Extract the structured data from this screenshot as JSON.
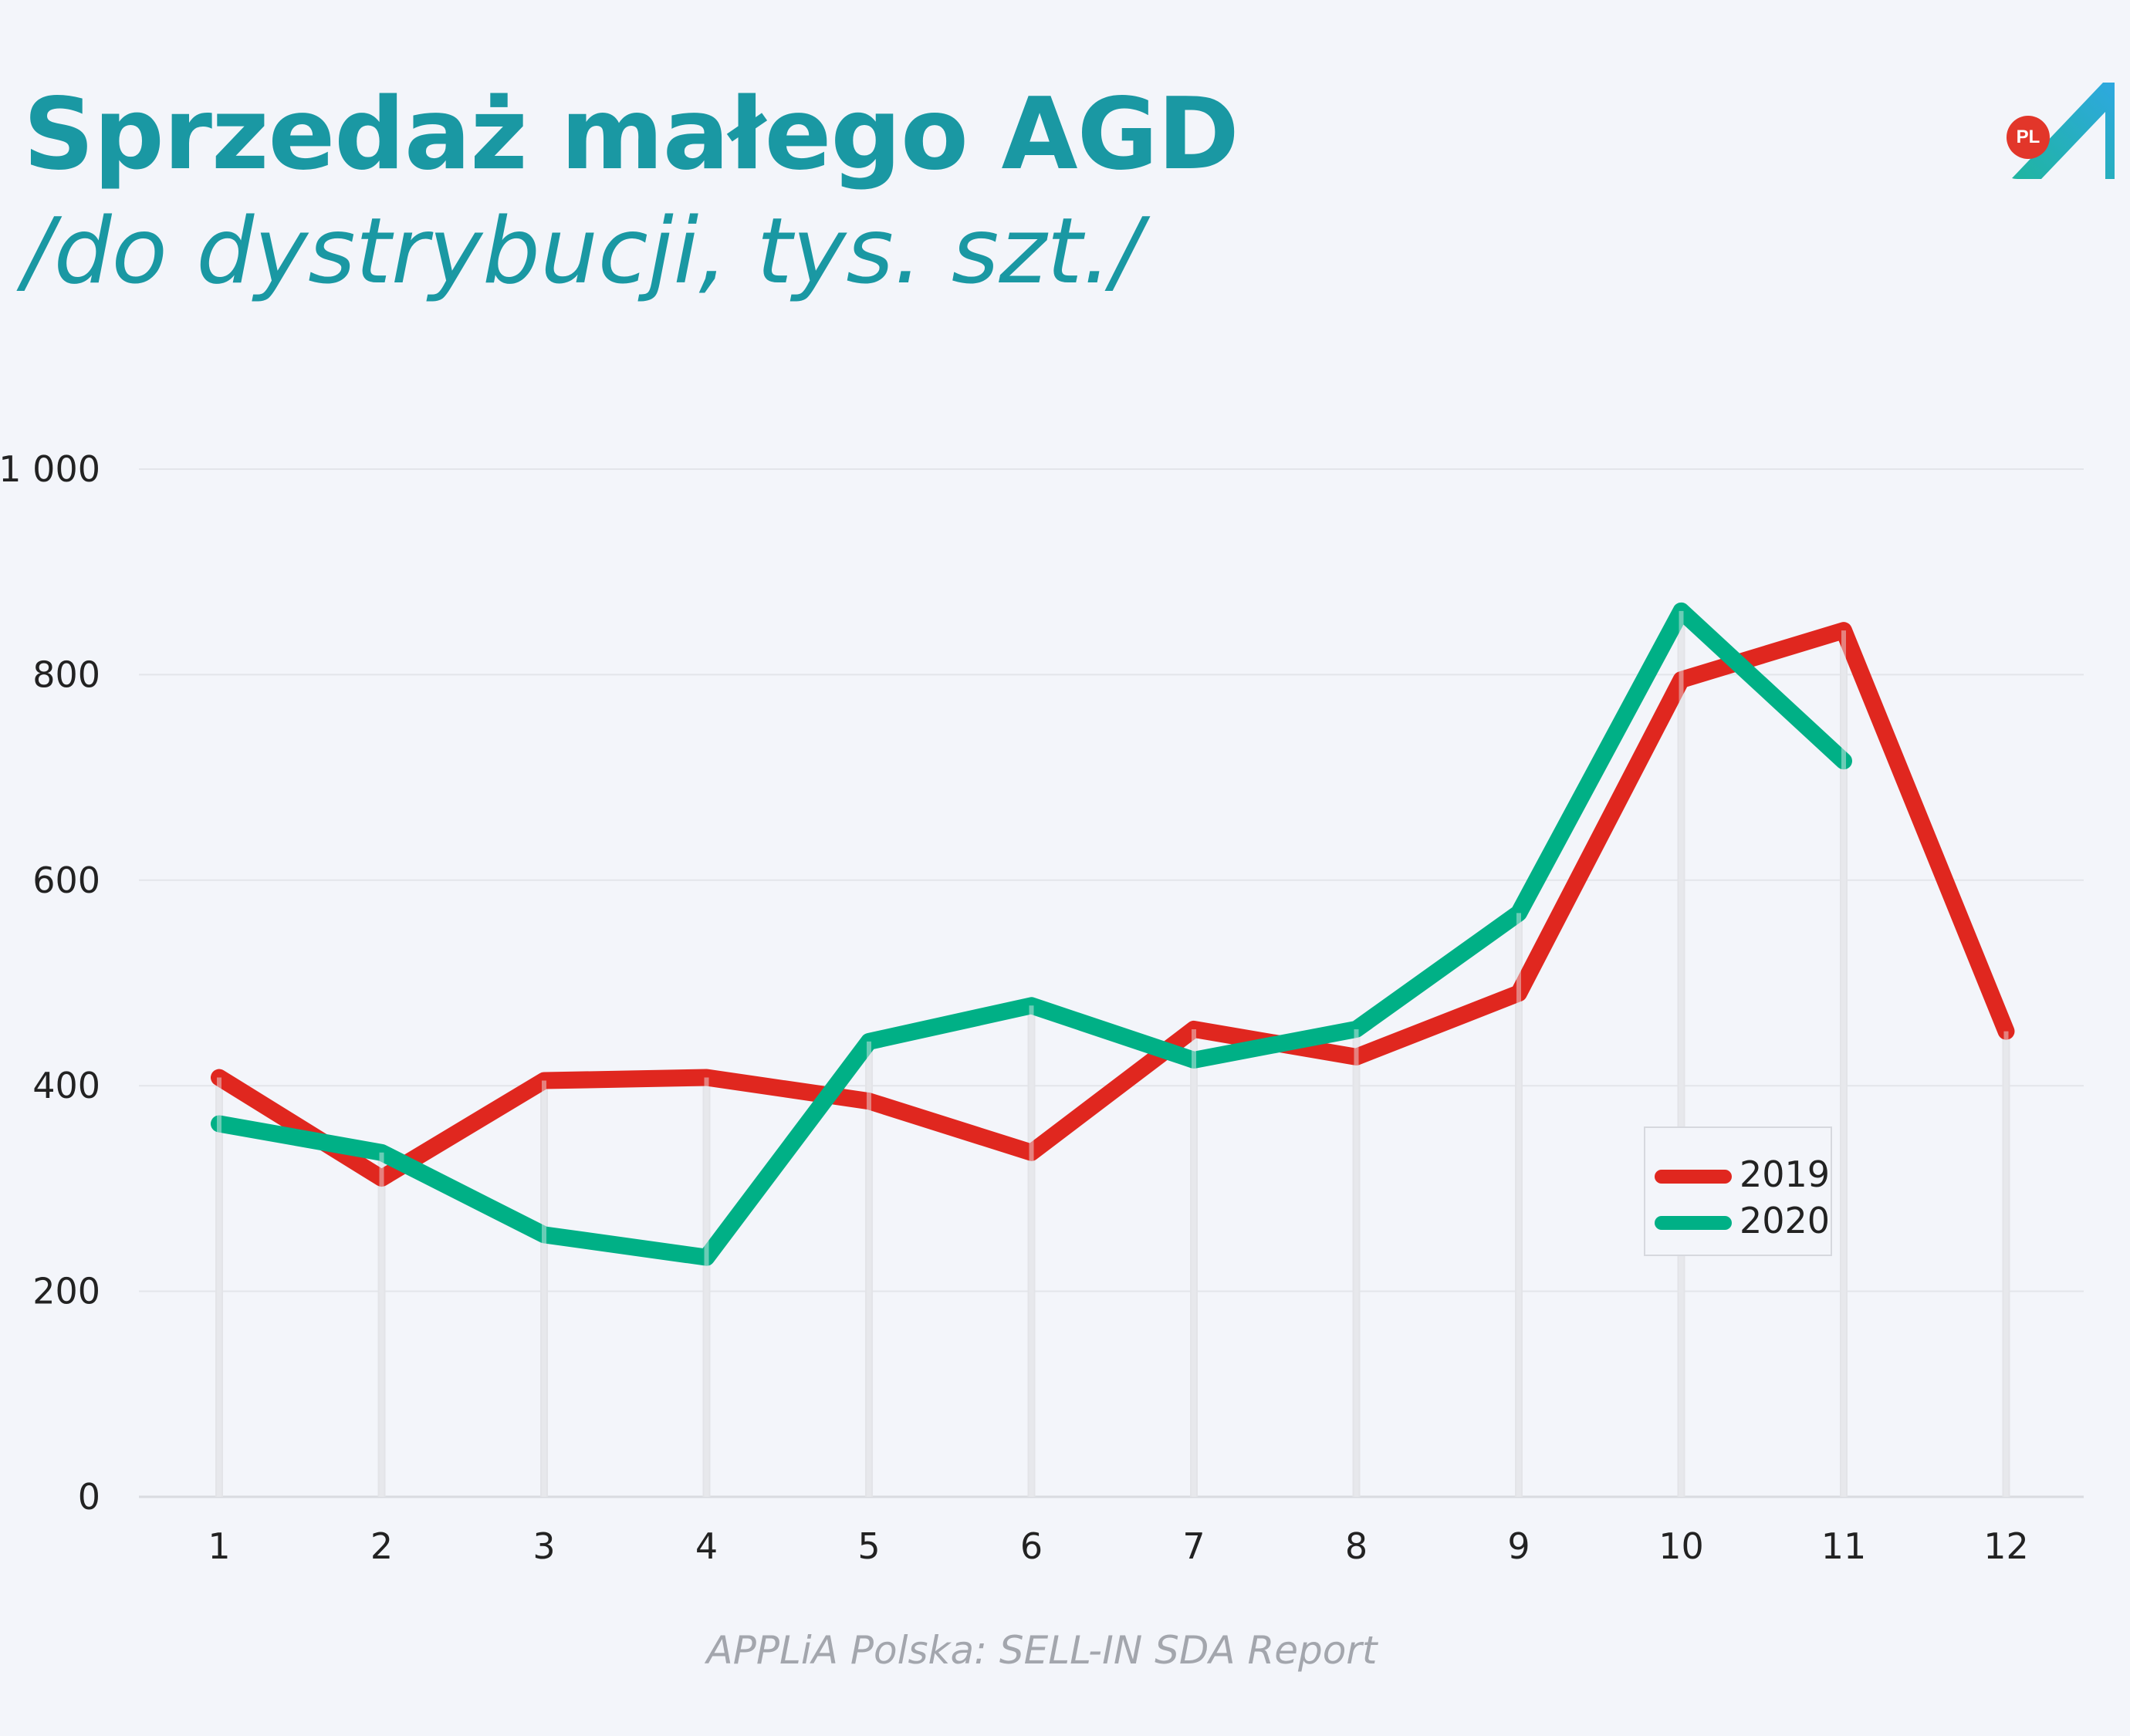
{
  "header": {
    "title": "Sprzedaż małego AGD",
    "subtitle": "/do dystrybucji, tys. szt./"
  },
  "logo": {
    "badge_text": "PL",
    "badge_color": "#e2362a",
    "mark_gradient": [
      "#1fb5a0",
      "#2ea8e0"
    ]
  },
  "source": "APPLiA Polska: SELL-IN SDA Report",
  "colors": {
    "title": "#1a98a3",
    "series_2019": "#e0271f",
    "series_2020": "#00b086"
  },
  "chart_data": {
    "type": "line",
    "title": "Sprzedaż małego AGD",
    "subtitle": "/do dystrybucji, tys. szt./",
    "categories": [
      "1",
      "2",
      "3",
      "4",
      "5",
      "6",
      "7",
      "8",
      "9",
      "10",
      "11",
      "12"
    ],
    "series": [
      {
        "name": "2019",
        "color": "#e0271f",
        "values": [
          408,
          310,
          405,
          408,
          385,
          335,
          455,
          428,
          490,
          795,
          843,
          453
        ]
      },
      {
        "name": "2020",
        "color": "#00b086",
        "values": [
          363,
          335,
          255,
          233,
          443,
          478,
          425,
          455,
          568,
          862,
          716,
          null
        ]
      }
    ],
    "ylim": [
      0,
      1000
    ],
    "y_ticks": [
      0,
      200,
      400,
      600,
      800,
      1000
    ],
    "y_tick_labels": [
      "0",
      "200",
      "400",
      "600",
      "800",
      "1 000"
    ],
    "grid": true,
    "legend": "right"
  }
}
